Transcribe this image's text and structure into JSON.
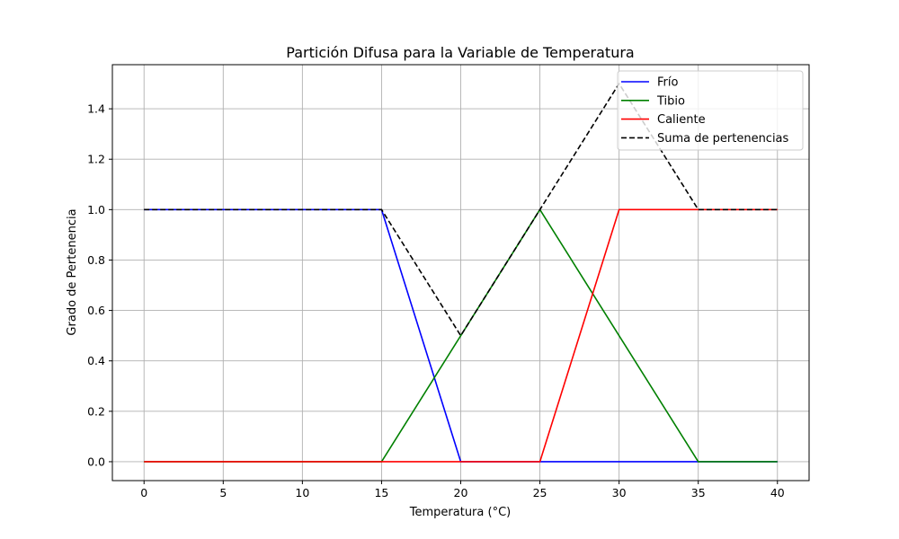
{
  "chart_data": {
    "type": "line",
    "title": "Partición Difusa para la Variable de Temperatura",
    "xlabel": "Temperatura (°C)",
    "ylabel": "Grado de Pertenencia",
    "xlim": [
      -2,
      42
    ],
    "ylim": [
      -0.075,
      1.575
    ],
    "xticks": [
      0,
      5,
      10,
      15,
      20,
      25,
      30,
      35,
      40
    ],
    "yticks": [
      0.0,
      0.2,
      0.4,
      0.6,
      0.8,
      1.0,
      1.2,
      1.4
    ],
    "ytick_labels": [
      "0.0",
      "0.2",
      "0.4",
      "0.6",
      "0.8",
      "1.0",
      "1.2",
      "1.4"
    ],
    "grid": true,
    "legend_position": "top-right",
    "series": [
      {
        "name": "Frío",
        "color": "#0000ff",
        "dash": "solid",
        "x": [
          0,
          15,
          20,
          25,
          30,
          35,
          40
        ],
        "y": [
          1,
          1,
          0,
          0,
          0,
          0,
          0
        ]
      },
      {
        "name": "Tibio",
        "color": "#008000",
        "dash": "solid",
        "x": [
          0,
          15,
          20,
          25,
          30,
          35,
          40
        ],
        "y": [
          0,
          0,
          0.5,
          1,
          0.5,
          0,
          0
        ]
      },
      {
        "name": "Caliente",
        "color": "#ff0000",
        "dash": "solid",
        "x": [
          0,
          15,
          20,
          25,
          30,
          35,
          40
        ],
        "y": [
          0,
          0,
          0,
          0,
          1,
          1,
          1
        ]
      },
      {
        "name": "Suma de pertenencias",
        "color": "#000000",
        "dash": "dashed",
        "x": [
          0,
          15,
          20,
          25,
          30,
          35,
          40
        ],
        "y": [
          1,
          1,
          0.5,
          1,
          1.5,
          1,
          1
        ]
      }
    ]
  }
}
